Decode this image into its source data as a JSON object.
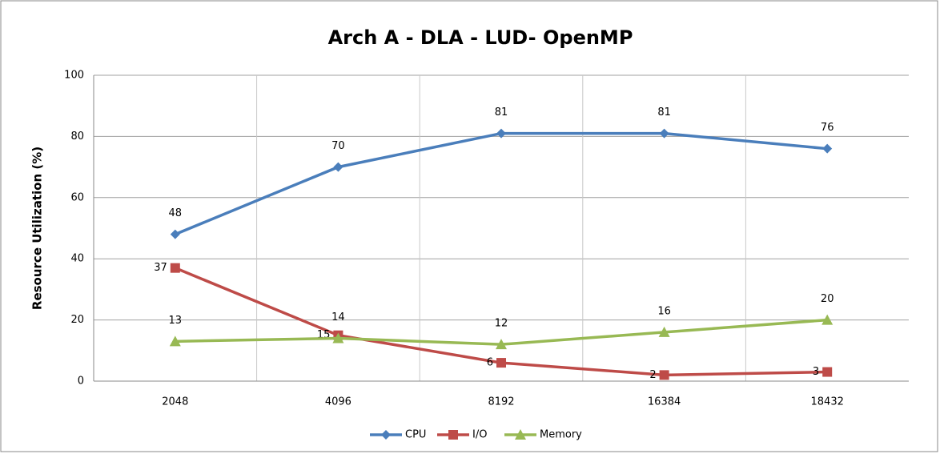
{
  "chart_data": {
    "type": "line",
    "title": "Arch A - DLA -  LUD- OpenMP",
    "y_label": "Resource Utilization (%)",
    "categories": [
      "2048",
      "4096",
      "8192",
      "16384",
      "18432"
    ],
    "series": [
      {
        "name": "CPU",
        "color": "#4a7ebb",
        "marker": "diamond",
        "values": [
          48,
          70,
          81,
          81,
          76
        ]
      },
      {
        "name": "I/O",
        "color": "#be4b48",
        "marker": "square",
        "values": [
          37,
          15,
          6,
          2,
          3
        ]
      },
      {
        "name": "Memory",
        "color": "#98b954",
        "marker": "triangle",
        "values": [
          13,
          14,
          12,
          16,
          20
        ]
      }
    ],
    "ylim": [
      0,
      100
    ],
    "yticks": [
      0,
      20,
      40,
      60,
      80,
      100
    ],
    "grid": true,
    "legend": "bottom"
  }
}
